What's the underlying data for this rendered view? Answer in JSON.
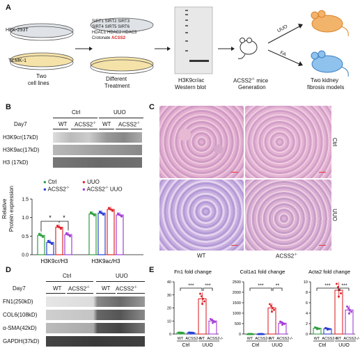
{
  "panel_a": {
    "letter": "A",
    "cell_line_1": "HEK-293T",
    "cell_line_2": "TCMK-1",
    "dish_caption_1": "Two",
    "dish_caption_2": "cell lines",
    "treatments": [
      [
        "SIRT1",
        "SIRT2",
        "SIRT3"
      ],
      [
        "SIRT4",
        "SIRT5",
        "SIRT6"
      ],
      [
        "HDAC1",
        "HDAC2",
        "HDAC3"
      ]
    ],
    "crotonate": "Crotonate",
    "acss2": "ACSS2",
    "treat_caption_1": "Different",
    "treat_caption_2": "Treatment",
    "wb_caption_1": "H3K9cr/ac",
    "wb_caption_2": "Western blot",
    "mice_caption_1": "ACSS2",
    "mice_caption_1_sup": "-/-",
    "mice_caption_1_tail": " mice",
    "mice_caption_2": "Generation",
    "arrow_top": "UUO",
    "arrow_bottom": "FA",
    "models_caption_1": "Two kidney",
    "models_caption_2": "fibrosis models"
  },
  "panel_b": {
    "letter": "B",
    "group_ctrl": "Ctrl",
    "group_uuo": "UUO",
    "day": "Day7",
    "wt": "WT",
    "ko": "ACSS2",
    "ko_sup": "-/-",
    "bands": [
      "H3K9cr(17kD)",
      "H3K9ac(17kD)",
      "H3 (17kD)"
    ],
    "legend": [
      "Ctrl",
      "UUO",
      "ACSS2-/-",
      "ACSS2-/- UUO"
    ],
    "legend_ctrl": "Ctrl",
    "legend_uuo": "UUO",
    "legend_ko": "ACSS2",
    "legend_ko_sup": "-/-",
    "legend_kouuo": "ACSS2",
    "legend_kouuo_sup": "-/-",
    "legend_kouuo_tail": " UUO",
    "star": "*"
  },
  "panel_c": {
    "letter": "C",
    "row_ctrl": "Ctrl",
    "row_uuo": "UUO",
    "col_wt": "WT",
    "col_ko": "ACSS2",
    "col_ko_sup": "-/-"
  },
  "panel_d": {
    "letter": "D",
    "group_ctrl": "Ctrl",
    "group_uuo": "UUO",
    "day": "Day7",
    "wt": "WT",
    "ko": "ACSS2",
    "ko_sup": "-/-",
    "bands": [
      "FN1(250kD)",
      "COL6(108kD)",
      "α-SMA(42kD)",
      "GAPDH(37kD)"
    ]
  },
  "panel_e": {
    "letter": "E",
    "wt": "WT",
    "ko": "ACSS2",
    "ko_sup": "-/-",
    "ctrl": "Ctrl",
    "uuo": "UUO"
  },
  "colors": {
    "ctrl_wt": "#2e9e3e",
    "ctrl_ko": "#2a3fd1",
    "uuo_wt": "#e0262b",
    "uuo_ko": "#a43cd6"
  },
  "chart_data": [
    {
      "type": "bar",
      "panel": "B",
      "ylabel": "Relative Protein expression",
      "ylim": [
        0,
        1.5
      ],
      "yticks": [
        0.0,
        0.5,
        1.0,
        1.5
      ],
      "categories": [
        "H3K9cr/H3",
        "H3K9ac/H3"
      ],
      "series": [
        {
          "name": "Ctrl",
          "values": [
            0.52,
            1.1
          ]
        },
        {
          "name": "ACSS2-/-",
          "values": [
            0.33,
            1.12
          ]
        },
        {
          "name": "UUO",
          "values": [
            0.74,
            1.22
          ]
        },
        {
          "name": "ACSS2-/- UUO",
          "values": [
            0.54,
            1.07
          ]
        }
      ]
    },
    {
      "type": "bar",
      "panel": "E",
      "title": "Fn1 fold change",
      "ylim": [
        0,
        40
      ],
      "yticks": [
        0,
        10,
        20,
        30,
        40
      ],
      "categories": [
        "Ctrl WT",
        "Ctrl ACSS2-/-",
        "UUO WT",
        "UUO ACSS2-/-"
      ],
      "values": [
        1,
        1,
        27,
        10
      ],
      "significance": [
        "***",
        "***"
      ]
    },
    {
      "type": "bar",
      "panel": "E",
      "title": "Col1a1 fold change",
      "ylim": [
        0,
        2500
      ],
      "yticks": [
        0,
        500,
        1000,
        1500,
        2000,
        2500
      ],
      "categories": [
        "Ctrl WT",
        "Ctrl ACSS2-/-",
        "UUO WT",
        "UUO ACSS2-/-"
      ],
      "values": [
        1,
        1,
        1250,
        520
      ],
      "significance": [
        "***",
        "**"
      ]
    },
    {
      "type": "bar",
      "panel": "E",
      "title": "Acta2 fold change",
      "ylim": [
        0,
        10
      ],
      "yticks": [
        0,
        2,
        4,
        6,
        8,
        10
      ],
      "categories": [
        "Ctrl WT",
        "Ctrl ACSS2-/-",
        "UUO WT",
        "UUO ACSS2-/-"
      ],
      "values": [
        1.1,
        1.0,
        8.4,
        4.6
      ],
      "significance": [
        "***",
        "***"
      ]
    }
  ]
}
